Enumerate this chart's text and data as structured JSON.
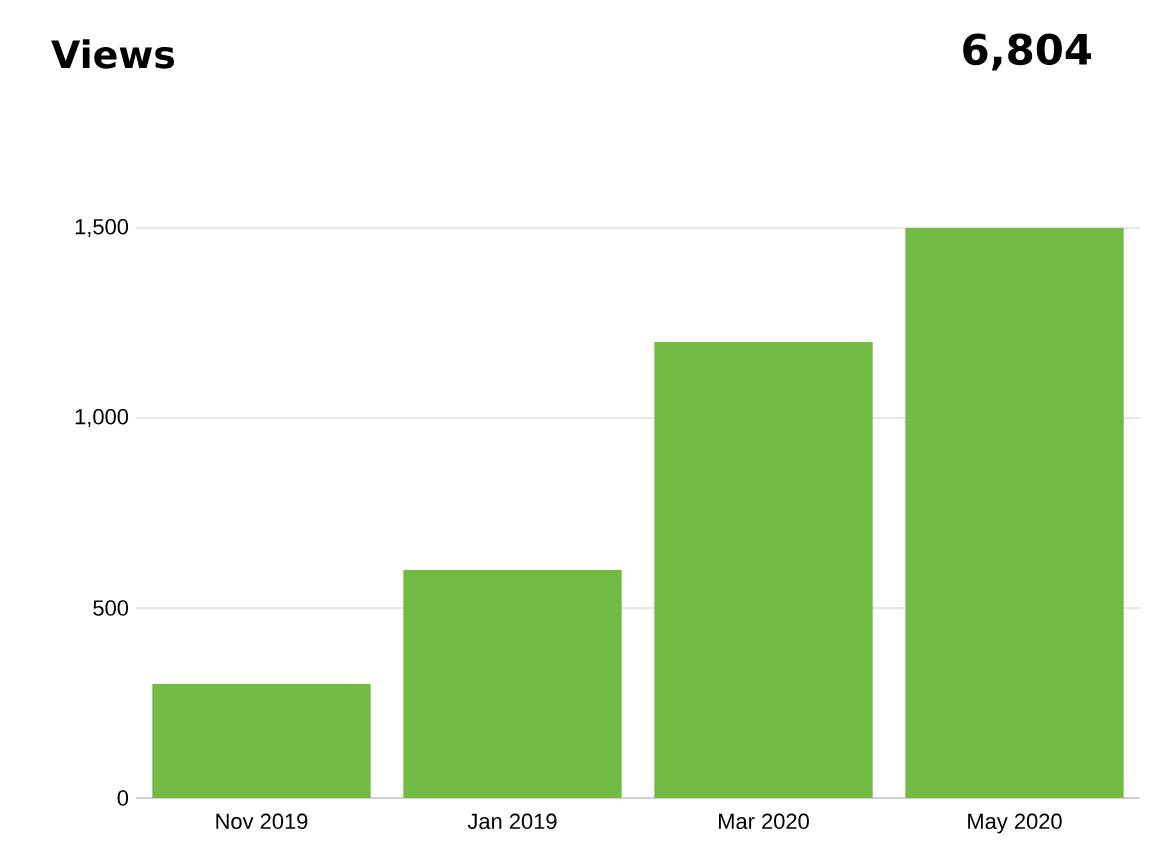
{
  "chart_data": {
    "type": "bar",
    "title": "Views",
    "subtitle": "6,804",
    "categories": [
      "Nov 2019",
      "Jan 2019",
      "Mar 2020",
      "May 2020"
    ],
    "values": [
      300,
      600,
      1200,
      1500
    ],
    "color": "#72bb45",
    "ylim": [
      0,
      1500
    ],
    "yticks": [
      0,
      500,
      {
        "value": 1000,
        "label": "1,000"
      },
      {
        "value": 1500,
        "label": "1,500"
      }
    ],
    "grid": "y"
  }
}
